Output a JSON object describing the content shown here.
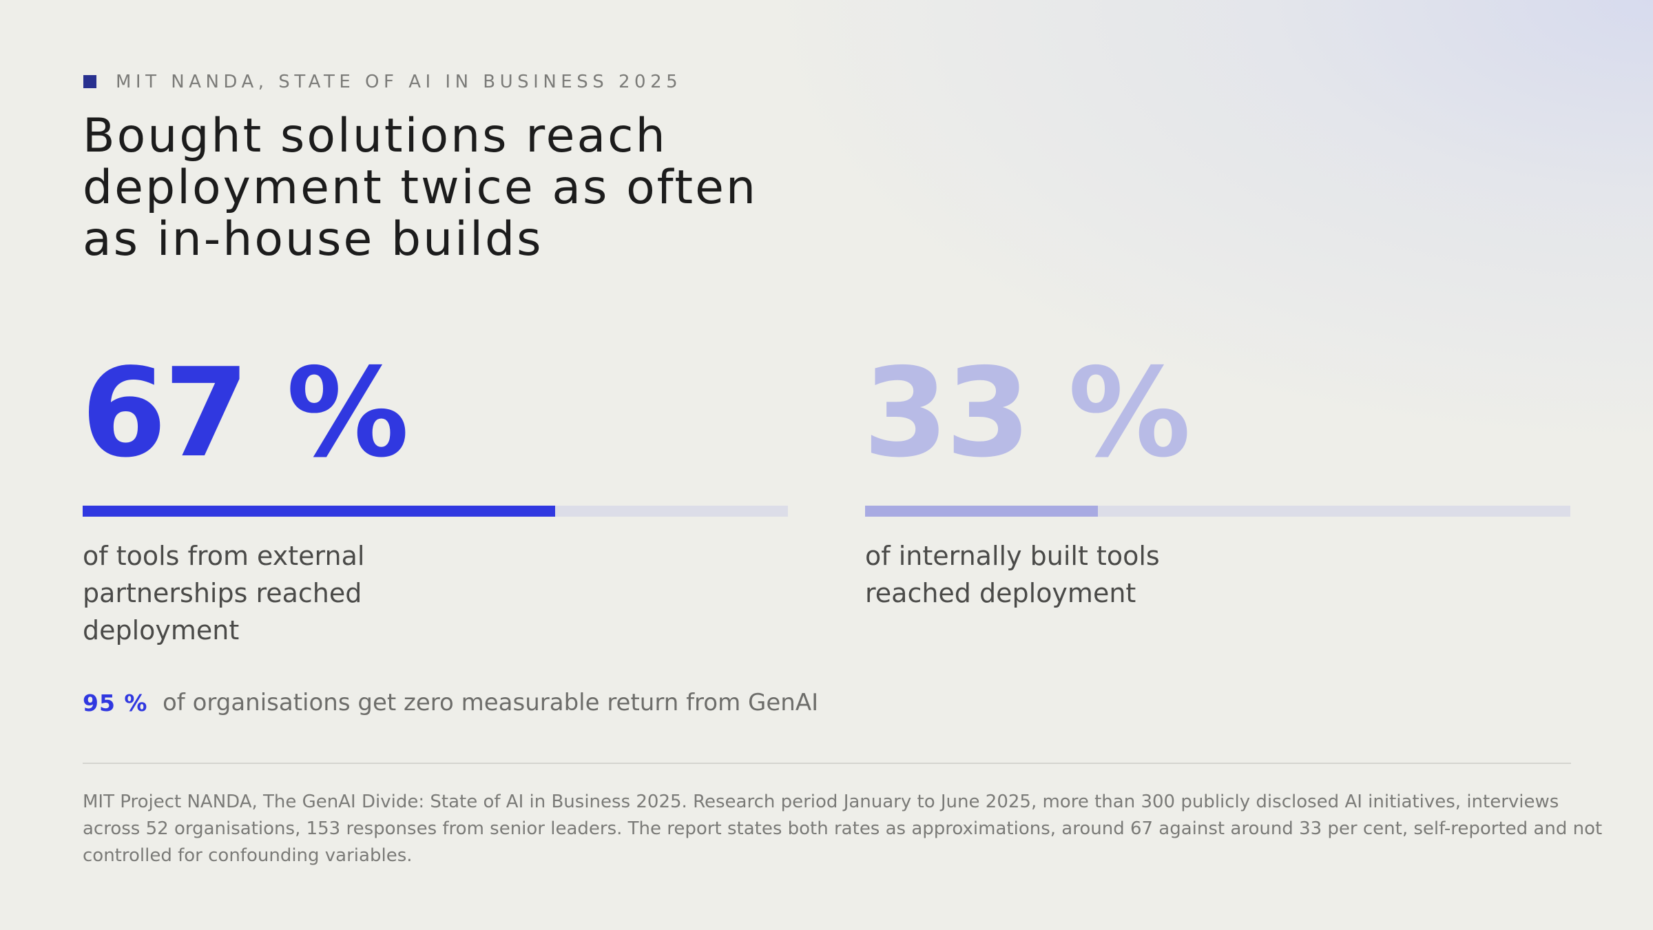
{
  "kicker": "MIT NANDA, STATE OF AI IN BUSINESS 2025",
  "title_lines": [
    "Bought solutions reach",
    "deployment twice as often",
    "as in-house builds"
  ],
  "accent_color": "#3038e0",
  "muted_color": "#b8bbe6",
  "chart_data": {
    "type": "bar",
    "categories": [
      "external partnerships",
      "internally built"
    ],
    "values": [
      67,
      33
    ],
    "unit": "%",
    "ylim": [
      0,
      100
    ],
    "stats": [
      {
        "value_label": "67 %",
        "value": 67,
        "desc_lines": [
          "of tools from external",
          "partnerships reached",
          "deployment"
        ],
        "color": "#3038e0"
      },
      {
        "value_label": "33 %",
        "value": 33,
        "desc_lines": [
          "of internally built tools",
          "reached deployment"
        ],
        "color": "#a8aae2"
      }
    ]
  },
  "footnote": {
    "value_label": "95 %",
    "text": "of organisations get zero measurable return from GenAI"
  },
  "source_lines": [
    "MIT Project NANDA, The GenAI Divide: State of AI in Business 2025. Research period January to June 2025, more than 300 publicly disclosed AI initiatives, interviews",
    "across 52 organisations, 153 responses from senior leaders. The report states both rates as approximations, around 67 against around 33 per cent, self-reported and not",
    "controlled for confounding variables."
  ]
}
